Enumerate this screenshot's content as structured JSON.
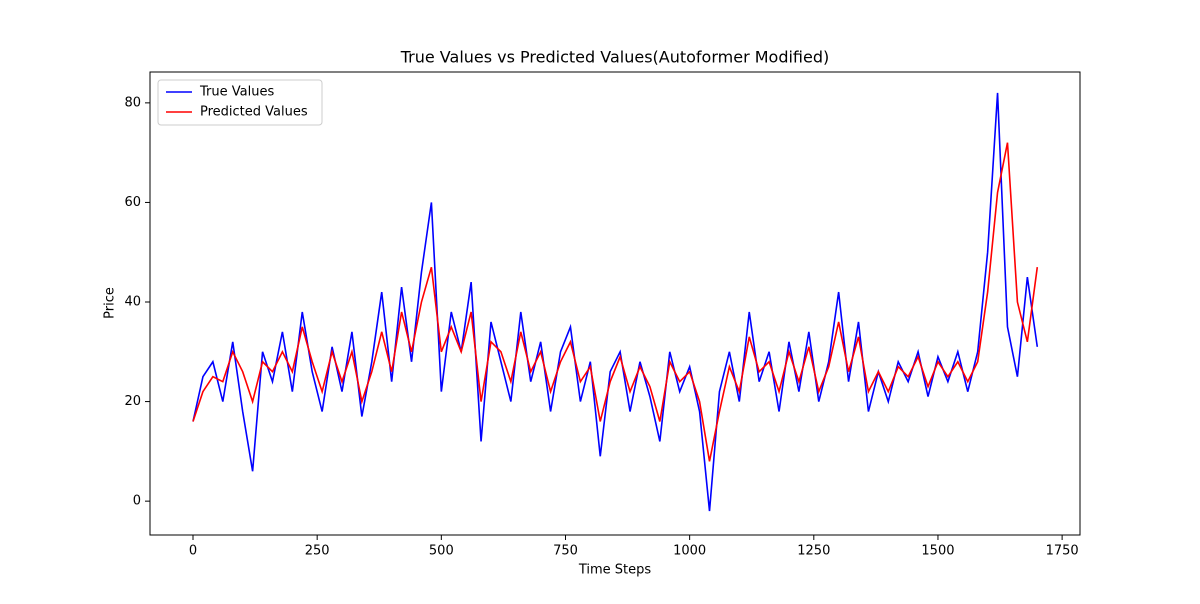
{
  "chart_data": {
    "type": "line",
    "title": "True Values vs Predicted Values(Autoformer Modified)",
    "x_label": "Time Steps",
    "y_label": "Price",
    "x": [
      0,
      20,
      40,
      60,
      80,
      100,
      120,
      140,
      160,
      180,
      200,
      220,
      240,
      260,
      280,
      300,
      320,
      340,
      360,
      380,
      400,
      420,
      440,
      460,
      480,
      500,
      520,
      540,
      560,
      580,
      600,
      620,
      640,
      660,
      680,
      700,
      720,
      740,
      760,
      780,
      800,
      820,
      840,
      860,
      880,
      900,
      920,
      940,
      960,
      980,
      1000,
      1020,
      1040,
      1060,
      1080,
      1100,
      1120,
      1140,
      1160,
      1180,
      1200,
      1220,
      1240,
      1260,
      1280,
      1300,
      1320,
      1340,
      1360,
      1380,
      1400,
      1420,
      1440,
      1460,
      1480,
      1500,
      1520,
      1540,
      1560,
      1580,
      1600,
      1620,
      1640,
      1660,
      1680,
      1700
    ],
    "series": [
      {
        "name": "True Values",
        "color": "#0000ff",
        "values": [
          16,
          25,
          28,
          20,
          32,
          18,
          6,
          30,
          24,
          34,
          22,
          38,
          26,
          18,
          31,
          22,
          34,
          17,
          28,
          42,
          24,
          43,
          28,
          46,
          60,
          22,
          38,
          30,
          44,
          12,
          36,
          28,
          20,
          38,
          24,
          32,
          18,
          30,
          35,
          20,
          28,
          9,
          26,
          30,
          18,
          28,
          21,
          12,
          30,
          22,
          27,
          18,
          -2,
          22,
          30,
          20,
          38,
          24,
          30,
          18,
          32,
          22,
          34,
          20,
          28,
          42,
          24,
          36,
          18,
          26,
          20,
          28,
          24,
          30,
          21,
          29,
          24,
          30,
          22,
          30,
          50,
          82,
          35,
          25,
          45,
          31
        ]
      },
      {
        "name": "Predicted Values",
        "color": "#ff0000",
        "values": [
          16,
          22,
          25,
          24,
          30,
          26,
          20,
          28,
          26,
          30,
          26,
          35,
          28,
          22,
          30,
          24,
          30,
          20,
          26,
          34,
          26,
          38,
          30,
          40,
          47,
          30,
          35,
          30,
          38,
          20,
          32,
          30,
          24,
          34,
          26,
          30,
          22,
          28,
          32,
          24,
          27,
          16,
          24,
          29,
          22,
          27,
          23,
          16,
          28,
          24,
          26,
          20,
          8,
          18,
          27,
          22,
          33,
          26,
          28,
          22,
          30,
          24,
          31,
          22,
          27,
          36,
          26,
          33,
          22,
          26,
          22,
          27,
          25,
          29,
          23,
          28,
          25,
          28,
          24,
          28,
          42,
          62,
          72,
          40,
          32,
          47
        ]
      }
    ],
    "xlim": [
      -86.6,
      1786
    ],
    "ylim": [
      -6.8,
      86.2
    ],
    "xticks": [
      0,
      250,
      500,
      750,
      1000,
      1250,
      1500,
      1750
    ],
    "yticks": [
      0,
      20,
      40,
      60,
      80
    ],
    "grid": false,
    "legend": "upper left"
  }
}
